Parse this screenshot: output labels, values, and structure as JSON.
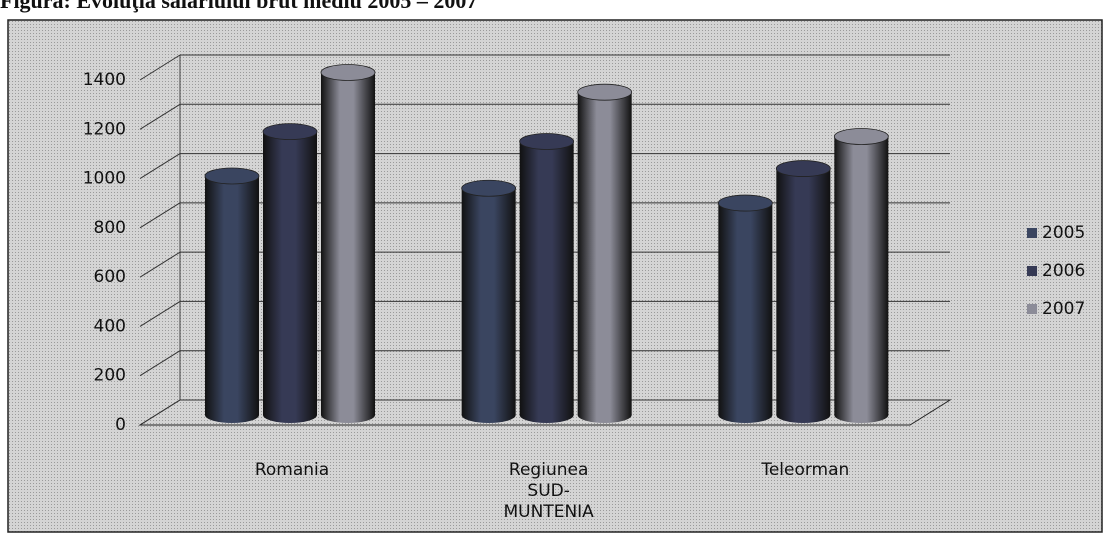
{
  "chart_data": {
    "type": "bar3d",
    "title": "Figura: Evoluţia salariului brut mediu 2005 – 2007",
    "categories": [
      "Romania",
      "Regiunea SUD-MUNTENIA",
      "Teleorman"
    ],
    "series": [
      {
        "name": "2005",
        "color": "#3a4560",
        "values": [
          970,
          920,
          860
        ]
      },
      {
        "name": "2006",
        "color": "#363a55",
        "values": [
          1150,
          1110,
          1000
        ]
      },
      {
        "name": "2007",
        "color": "#8c8c98",
        "values": [
          1390,
          1310,
          1130
        ]
      }
    ],
    "ylim": [
      0,
      1400
    ],
    "yticks": [
      0,
      200,
      400,
      600,
      800,
      1000,
      1200,
      1400
    ],
    "grid": true,
    "legend": "right"
  }
}
